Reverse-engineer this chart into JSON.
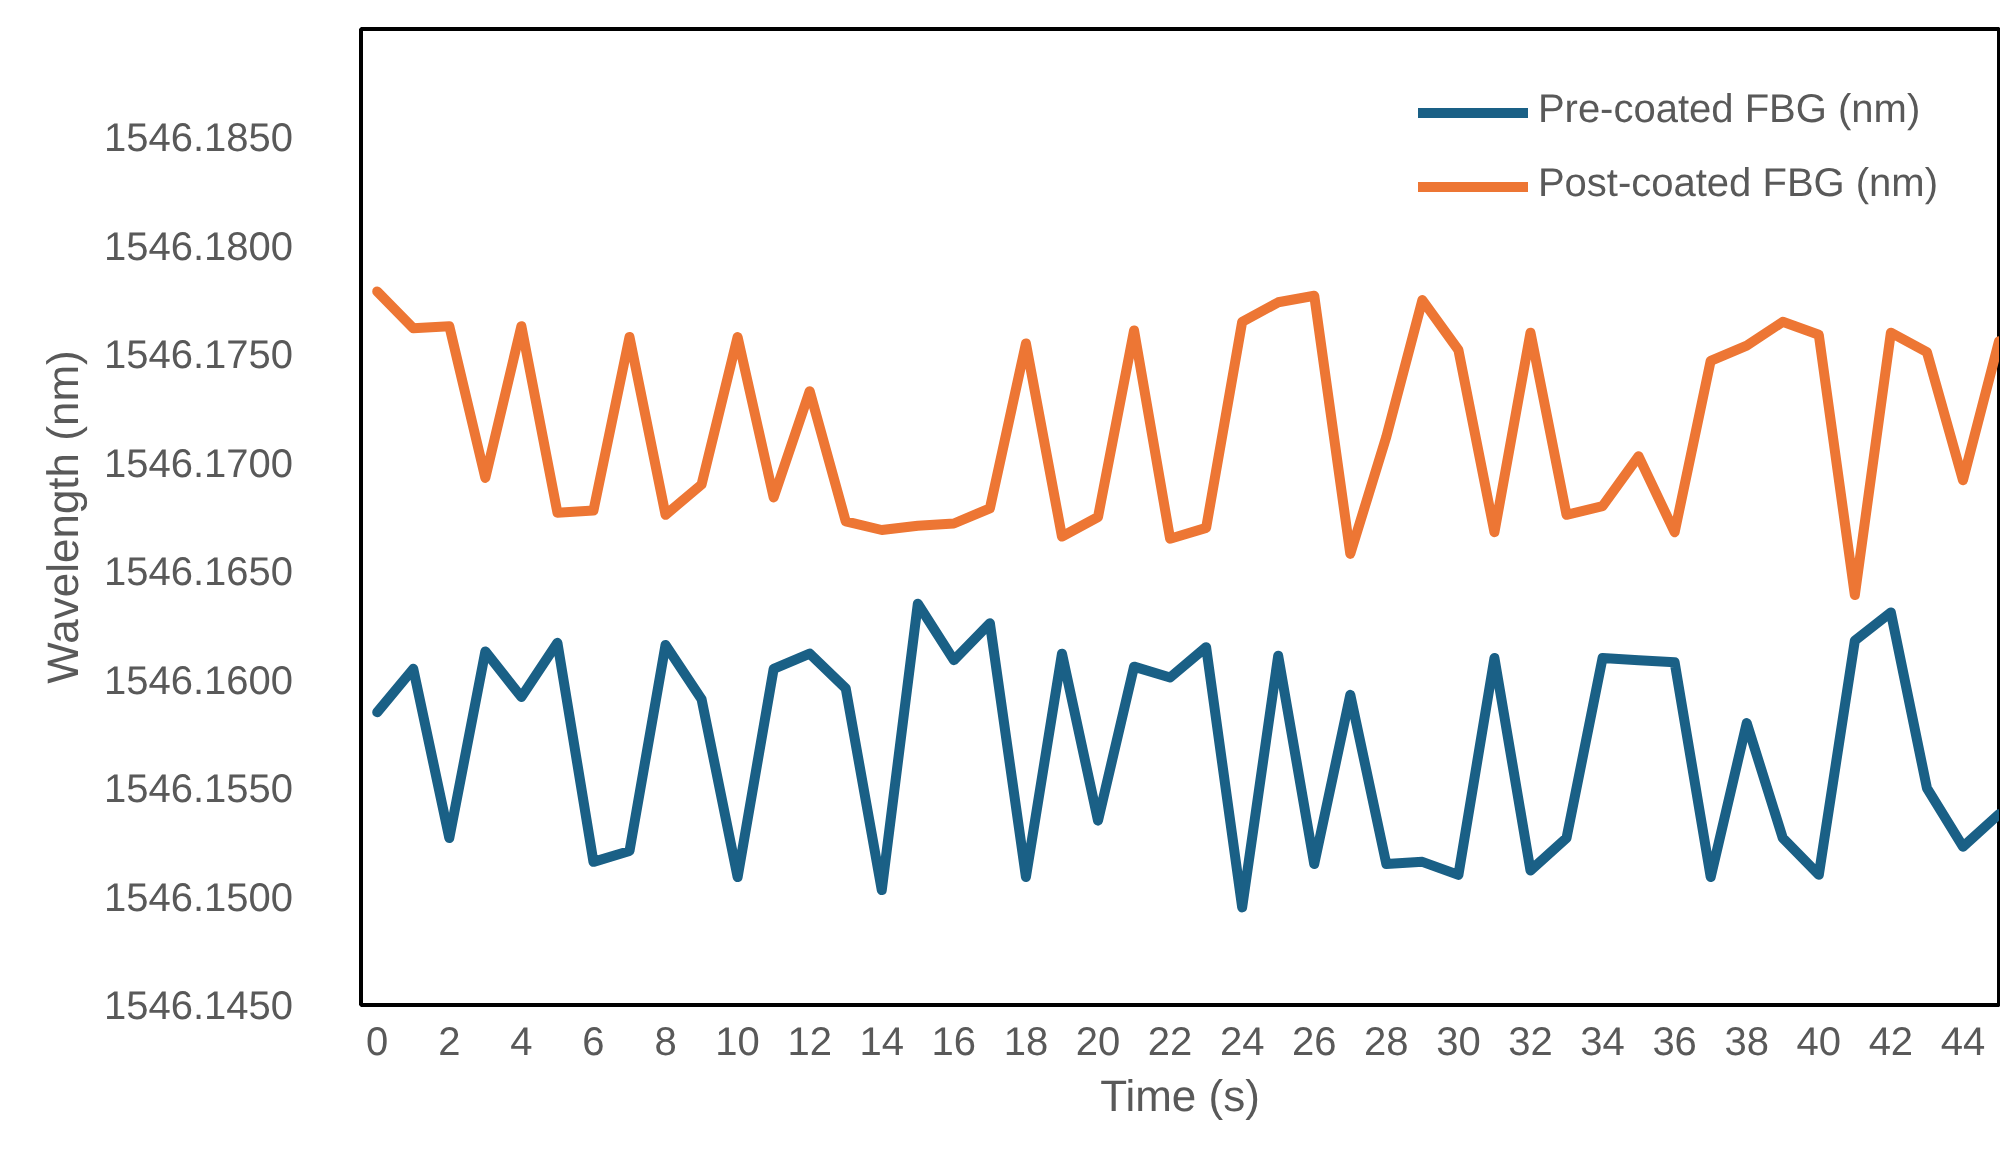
{
  "chart_data": {
    "type": "line",
    "xlabel": "Time (s)",
    "ylabel": "Wavelength (nm)",
    "x": [
      0,
      1,
      2,
      3,
      4,
      5,
      6,
      7,
      8,
      9,
      10,
      11,
      12,
      13,
      14,
      15,
      16,
      17,
      18,
      19,
      20,
      21,
      22,
      23,
      24,
      25,
      26,
      27,
      28,
      29,
      30,
      31,
      32,
      33,
      34,
      35,
      36,
      37,
      38,
      39,
      40,
      41,
      42,
      43,
      44,
      45
    ],
    "series": [
      {
        "name": "Pre-coated FBG (nm)",
        "color": "#1a6086",
        "values": [
          1546.1585,
          1546.1605,
          1546.1527,
          1546.1613,
          1546.1592,
          1546.1617,
          1546.1516,
          1546.1521,
          1546.1616,
          1546.1591,
          1546.1509,
          1546.1605,
          1546.1612,
          1546.1596,
          1546.1503,
          1546.1635,
          1546.1609,
          1546.1626,
          1546.1509,
          1546.1612,
          1546.1535,
          1546.1606,
          1546.1601,
          1546.1615,
          1546.1495,
          1546.1611,
          1546.1515,
          1546.1593,
          1546.1515,
          1546.1516,
          1546.151,
          1546.161,
          1546.1512,
          1546.1527,
          1546.161,
          1546.1609,
          1546.1608,
          1546.1509,
          1546.158,
          1546.1527,
          1546.151,
          1546.1618,
          1546.1631,
          1546.155,
          1546.1523,
          1546.1538
        ]
      },
      {
        "name": "Post-coated FBG (nm)",
        "color": "#ed7634",
        "values": [
          1546.1779,
          1546.1762,
          1546.1763,
          1546.1693,
          1546.1763,
          1546.1677,
          1546.1678,
          1546.1758,
          1546.1676,
          1546.169,
          1546.1758,
          1546.1684,
          1546.1733,
          1546.1673,
          1546.1669,
          1546.1671,
          1546.1672,
          1546.1679,
          1546.1755,
          1546.1666,
          1546.1675,
          1546.1761,
          1546.1665,
          1546.167,
          1546.1765,
          1546.1774,
          1546.1777,
          1546.1658,
          1546.1712,
          1546.1775,
          1546.1752,
          1546.1668,
          1546.176,
          1546.1676,
          1546.168,
          1546.1703,
          1546.1668,
          1546.1747,
          1546.1754,
          1546.1765,
          1546.1759,
          1546.1639,
          1546.176,
          1546.1751,
          1546.1692,
          1546.1756
        ]
      }
    ],
    "xlim": [
      -0.45,
      45
    ],
    "xticks": [
      0,
      2,
      4,
      6,
      8,
      10,
      12,
      14,
      16,
      18,
      20,
      22,
      24,
      26,
      28,
      30,
      32,
      34,
      36,
      38,
      40,
      42,
      44
    ],
    "ylim": [
      1546.145,
      1546.19
    ],
    "yticks": [
      {
        "value": 1546.145,
        "label": "1546.1450"
      },
      {
        "value": 1546.15,
        "label": "1546.1500"
      },
      {
        "value": 1546.155,
        "label": "1546.1550"
      },
      {
        "value": 1546.16,
        "label": "1546.1600"
      },
      {
        "value": 1546.165,
        "label": "1546.1650"
      },
      {
        "value": 1546.17,
        "label": "1546.1700"
      },
      {
        "value": 1546.175,
        "label": "1546.1750"
      },
      {
        "value": 1546.18,
        "label": "1546.1800"
      },
      {
        "value": 1546.185,
        "label": "1546.1850"
      }
    ],
    "grid": false,
    "legend": "top right",
    "marker": "none",
    "line_style": "solid"
  }
}
